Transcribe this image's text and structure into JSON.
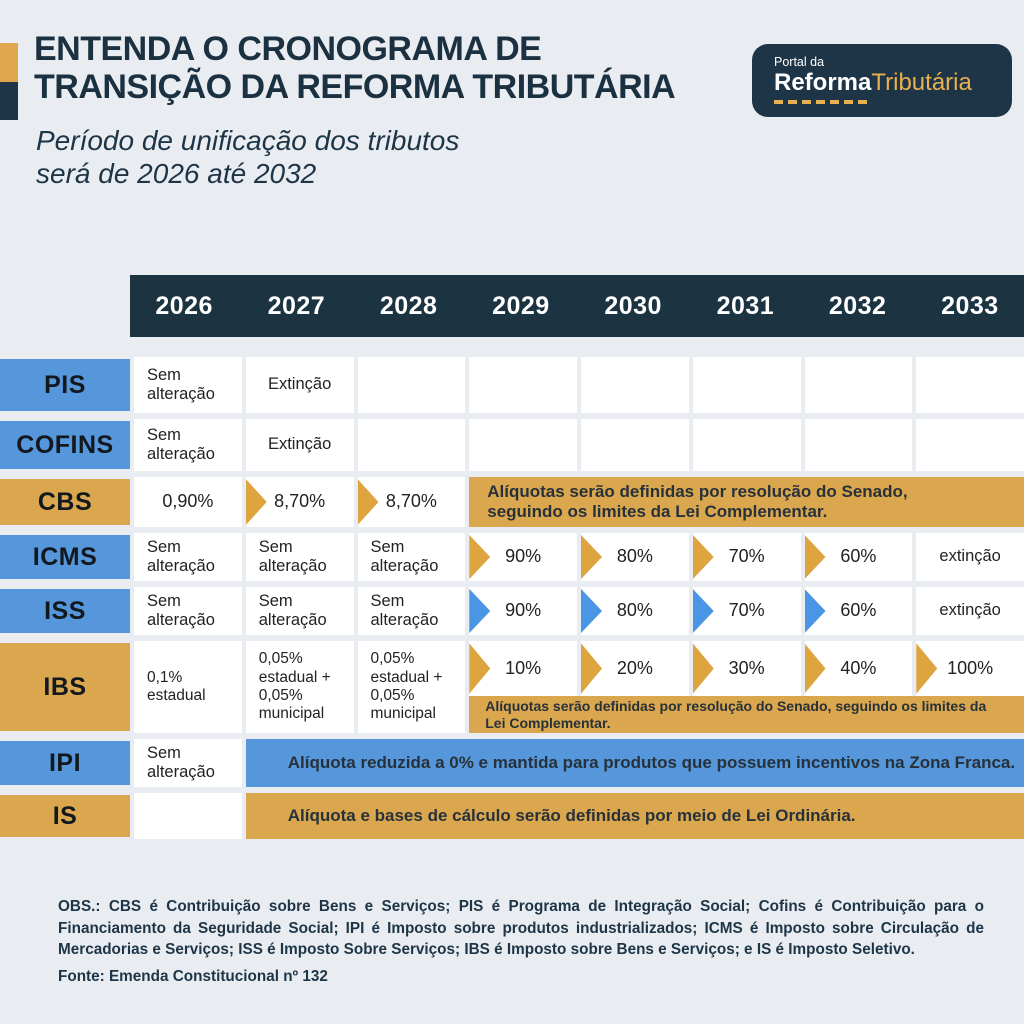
{
  "header": {
    "title_line1": "ENTENDA O CRONOGRAMA DE",
    "title_line2": "TRANSIÇÃO DA REFORMA TRIBUTÁRIA",
    "subtitle_line1": "Período de unificação dos tributos",
    "subtitle_line2": "será de 2026 até 2032",
    "logo": {
      "kicker": "Portal da",
      "brand_bold": "Reforma",
      "brand_accent": "Tributária"
    }
  },
  "colors": {
    "navy": "#1c3342",
    "blue": "#5697dc",
    "gold": "#dba74e",
    "background": "#e9edf1"
  },
  "years": [
    "2026",
    "2027",
    "2028",
    "2029",
    "2030",
    "2031",
    "2032",
    "2033"
  ],
  "taxes": {
    "pis": {
      "label": "PIS",
      "c2026": "Sem alteração",
      "c2027": "Extinção"
    },
    "cofins": {
      "label": "COFINS",
      "c2026": "Sem alteração",
      "c2027": "Extinção"
    },
    "cbs": {
      "label": "CBS",
      "c2026": "0,90%",
      "c2027": "8,70%",
      "c2028": "8,70%",
      "banner": "Alíquotas serão definidas por resolução do Senado, seguindo os limites da Lei Complementar."
    },
    "icms": {
      "label": "ICMS",
      "c2026": "Sem alteração",
      "c2027": "Sem alteração",
      "c2028": "Sem alteração",
      "c2029": "90%",
      "c2030": "80%",
      "c2031": "70%",
      "c2032": "60%",
      "c2033": "extinção"
    },
    "iss": {
      "label": "ISS",
      "c2026": "Sem alteração",
      "c2027": "Sem alteração",
      "c2028": "Sem alteração",
      "c2029": "90%",
      "c2030": "80%",
      "c2031": "70%",
      "c2032": "60%",
      "c2033": "extinção"
    },
    "ibs": {
      "label": "IBS",
      "c2026": "0,1% estadual",
      "c2027": "0,05% estadual + 0,05% municipal",
      "c2028": "0,05% estadual + 0,05% municipal",
      "c2029": "10%",
      "c2030": "20%",
      "c2031": "30%",
      "c2032": "40%",
      "c2033": "100%",
      "banner": "Alíquotas serão definidas por resolução do Senado, seguindo os limites da Lei Complementar."
    },
    "ipi": {
      "label": "IPI",
      "c2026": "Sem alteração",
      "banner": "Alíquota reduzida a 0% e mantida para produtos que possuem incentivos na Zona Franca."
    },
    "is": {
      "label": "IS",
      "banner": "Alíquota e bases de cálculo serão definidas por meio de Lei Ordinária."
    }
  },
  "footer": {
    "obs": "OBS.: CBS é Contribuição sobre Bens e Serviços; PIS é Programa de Integração Social; Cofins é Contribuição para o Financiamento da Seguridade Social; IPI é Imposto sobre produtos industrializados; ICMS é Imposto sobre Circulação de Mercadorias e Serviços; ISS é Imposto Sobre Serviços; IBS é Imposto sobre Bens e Serviços; e IS é Imposto Seletivo.",
    "fonte": "Fonte: Emenda Constitucional nº 132"
  }
}
